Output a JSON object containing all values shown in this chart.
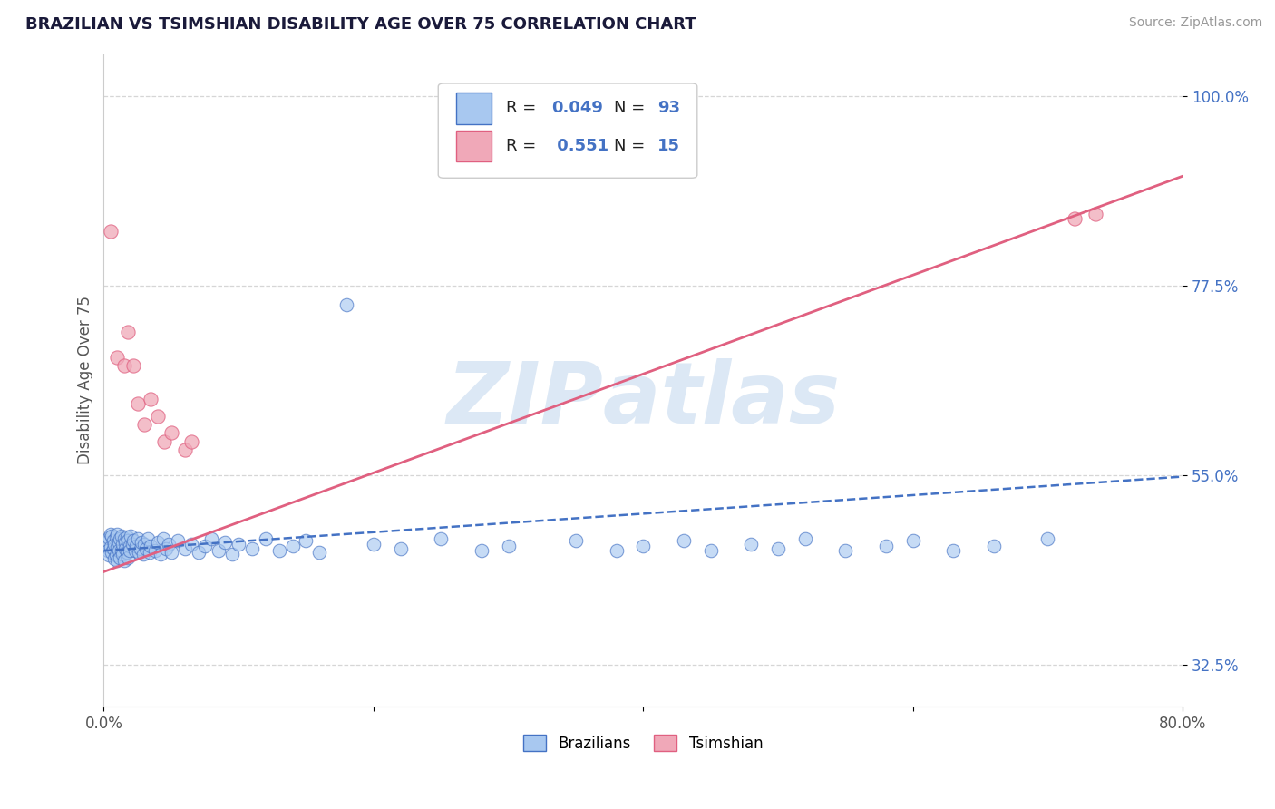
{
  "title": "BRAZILIAN VS TSIMSHIAN DISABILITY AGE OVER 75 CORRELATION CHART",
  "source": "Source: ZipAtlas.com",
  "ylabel": "Disability Age Over 75",
  "xlim": [
    0.0,
    0.8
  ],
  "ylim": [
    0.275,
    1.05
  ],
  "brazil_R": 0.049,
  "brazil_N": 93,
  "tsim_R": 0.551,
  "tsim_N": 15,
  "brazil_color": "#a8c8f0",
  "tsim_color": "#f0a8b8",
  "brazil_line_color": "#4472c4",
  "tsim_line_color": "#e06080",
  "brazil_x": [
    0.002,
    0.003,
    0.004,
    0.004,
    0.005,
    0.005,
    0.006,
    0.006,
    0.007,
    0.007,
    0.008,
    0.008,
    0.009,
    0.009,
    0.01,
    0.01,
    0.01,
    0.011,
    0.011,
    0.012,
    0.012,
    0.013,
    0.013,
    0.014,
    0.014,
    0.015,
    0.015,
    0.016,
    0.016,
    0.017,
    0.017,
    0.018,
    0.018,
    0.019,
    0.019,
    0.02,
    0.021,
    0.022,
    0.023,
    0.024,
    0.025,
    0.026,
    0.027,
    0.028,
    0.029,
    0.03,
    0.031,
    0.033,
    0.034,
    0.035,
    0.038,
    0.04,
    0.042,
    0.044,
    0.046,
    0.048,
    0.05,
    0.055,
    0.06,
    0.065,
    0.07,
    0.075,
    0.08,
    0.085,
    0.09,
    0.095,
    0.1,
    0.11,
    0.12,
    0.13,
    0.14,
    0.15,
    0.16,
    0.18,
    0.2,
    0.22,
    0.25,
    0.28,
    0.3,
    0.35,
    0.38,
    0.4,
    0.43,
    0.45,
    0.48,
    0.5,
    0.52,
    0.55,
    0.58,
    0.6,
    0.63,
    0.66,
    0.7
  ],
  "brazil_y": [
    0.47,
    0.46,
    0.475,
    0.455,
    0.48,
    0.465,
    0.478,
    0.458,
    0.472,
    0.462,
    0.468,
    0.45,
    0.476,
    0.455,
    0.48,
    0.465,
    0.448,
    0.47,
    0.46,
    0.474,
    0.452,
    0.478,
    0.46,
    0.468,
    0.456,
    0.474,
    0.448,
    0.47,
    0.462,
    0.476,
    0.458,
    0.472,
    0.452,
    0.466,
    0.46,
    0.478,
    0.468,
    0.472,
    0.46,
    0.466,
    0.474,
    0.458,
    0.462,
    0.47,
    0.456,
    0.468,
    0.462,
    0.474,
    0.458,
    0.466,
    0.46,
    0.47,
    0.456,
    0.474,
    0.462,
    0.468,
    0.458,
    0.472,
    0.462,
    0.468,
    0.458,
    0.466,
    0.474,
    0.46,
    0.47,
    0.456,
    0.468,
    0.462,
    0.474,
    0.46,
    0.466,
    0.472,
    0.458,
    0.752,
    0.468,
    0.462,
    0.474,
    0.46,
    0.466,
    0.472,
    0.46,
    0.466,
    0.472,
    0.46,
    0.468,
    0.462,
    0.474,
    0.46,
    0.466,
    0.472,
    0.46,
    0.466,
    0.474
  ],
  "tsim_x": [
    0.005,
    0.01,
    0.015,
    0.018,
    0.022,
    0.025,
    0.03,
    0.035,
    0.04,
    0.045,
    0.05,
    0.06,
    0.065,
    0.72,
    0.735
  ],
  "tsim_y": [
    0.84,
    0.69,
    0.68,
    0.72,
    0.68,
    0.635,
    0.61,
    0.64,
    0.62,
    0.59,
    0.6,
    0.58,
    0.59,
    0.855,
    0.86
  ]
}
